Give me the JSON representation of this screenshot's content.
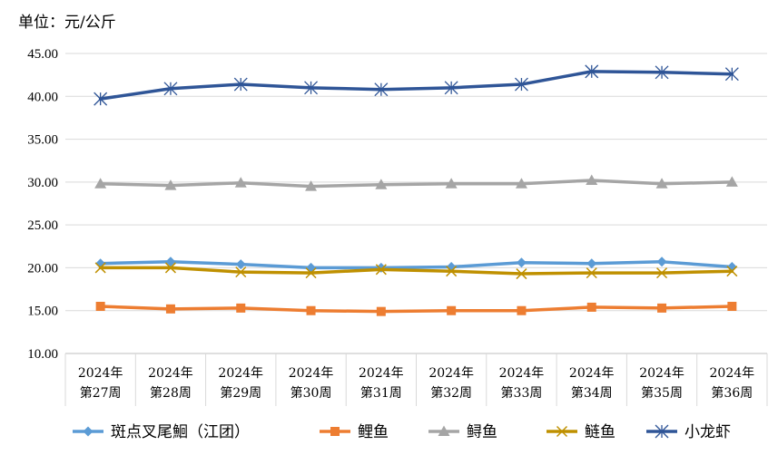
{
  "chart_data": {
    "type": "line",
    "unit_label": "单位：元/公斤",
    "categories": [
      [
        "2024年",
        "第27周"
      ],
      [
        "2024年",
        "第28周"
      ],
      [
        "2024年",
        "第29周"
      ],
      [
        "2024年",
        "第30周"
      ],
      [
        "2024年",
        "第31周"
      ],
      [
        "2024年",
        "第32周"
      ],
      [
        "2024年",
        "第33周"
      ],
      [
        "2024年",
        "第34周"
      ],
      [
        "2024年",
        "第35周"
      ],
      [
        "2024年",
        "第36周"
      ]
    ],
    "y_ticks": [
      "10.00",
      "15.00",
      "20.00",
      "25.00",
      "30.00",
      "35.00",
      "40.00",
      "45.00"
    ],
    "ylim": [
      10,
      45
    ],
    "grid": "horizontal",
    "legend_position": "bottom",
    "series": [
      {
        "name": "斑点叉尾鮰（江团）",
        "color": "#5B9BD5",
        "marker": "diamond",
        "values": [
          20.5,
          20.7,
          20.4,
          20.0,
          20.0,
          20.1,
          20.6,
          20.5,
          20.7,
          20.1
        ]
      },
      {
        "name": "鲤鱼",
        "color": "#ED7D31",
        "marker": "square",
        "values": [
          15.5,
          15.2,
          15.3,
          15.0,
          14.9,
          15.0,
          15.0,
          15.4,
          15.3,
          15.5
        ]
      },
      {
        "name": "鲟鱼",
        "color": "#A5A5A5",
        "marker": "triangle",
        "values": [
          29.8,
          29.6,
          29.9,
          29.5,
          29.7,
          29.8,
          29.8,
          30.2,
          29.8,
          30.0
        ]
      },
      {
        "name": "鲢鱼",
        "color": "#BF9000",
        "marker": "x",
        "values": [
          20.0,
          20.0,
          19.5,
          19.4,
          19.8,
          19.6,
          19.3,
          19.4,
          19.4,
          19.6
        ]
      },
      {
        "name": "小龙虾",
        "color": "#2F5597",
        "marker": "star",
        "values": [
          39.7,
          40.9,
          41.4,
          41.0,
          40.8,
          41.0,
          41.4,
          42.9,
          42.8,
          42.6
        ]
      }
    ]
  }
}
